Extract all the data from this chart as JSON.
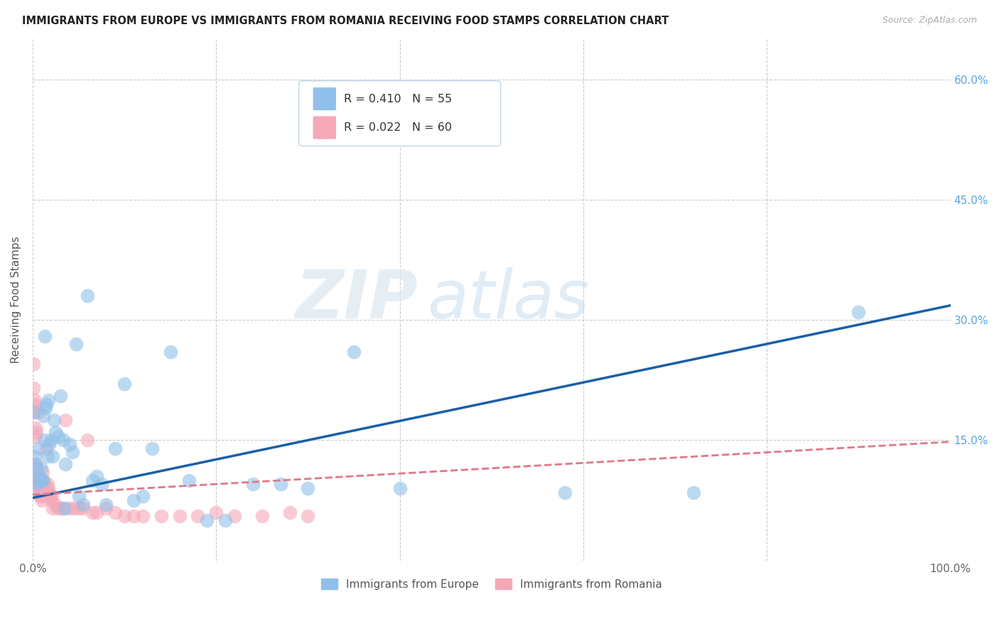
{
  "title": "IMMIGRANTS FROM EUROPE VS IMMIGRANTS FROM ROMANIA RECEIVING FOOD STAMPS CORRELATION CHART",
  "source": "Source: ZipAtlas.com",
  "ylabel": "Receiving Food Stamps",
  "xlabel": "",
  "xlim": [
    0,
    1.0
  ],
  "ylim": [
    0,
    0.65
  ],
  "yticks": [
    0.0,
    0.15,
    0.3,
    0.45,
    0.6
  ],
  "xticks": [
    0.0,
    0.2,
    0.4,
    0.6,
    0.8,
    1.0
  ],
  "xtick_labels": [
    "0.0%",
    "",
    "",
    "",
    "",
    "100.0%"
  ],
  "right_ytick_labels": [
    "15.0%",
    "30.0%",
    "45.0%",
    "60.0%"
  ],
  "europe_color": "#90c0ea",
  "romania_color": "#f5a8b8",
  "europe_line_color": "#1a5fa8",
  "romania_line_color": "#e07888",
  "background_color": "#ffffff",
  "watermark_zip": "ZIP",
  "watermark_atlas": "atlas",
  "europe_x": [
    0.001,
    0.002,
    0.003,
    0.004,
    0.005,
    0.006,
    0.007,
    0.008,
    0.009,
    0.01,
    0.011,
    0.012,
    0.013,
    0.014,
    0.015,
    0.016,
    0.018,
    0.02,
    0.022,
    0.025,
    0.028,
    0.03,
    0.033,
    0.036,
    0.04,
    0.043,
    0.047,
    0.05,
    0.055,
    0.06,
    0.065,
    0.07,
    0.075,
    0.08,
    0.09,
    0.1,
    0.11,
    0.12,
    0.13,
    0.15,
    0.17,
    0.19,
    0.21,
    0.24,
    0.27,
    0.3,
    0.35,
    0.4,
    0.58,
    0.72,
    0.9,
    0.013,
    0.017,
    0.023,
    0.035
  ],
  "europe_y": [
    0.185,
    0.13,
    0.12,
    0.115,
    0.095,
    0.14,
    0.105,
    0.1,
    0.115,
    0.1,
    0.1,
    0.18,
    0.15,
    0.19,
    0.195,
    0.13,
    0.145,
    0.15,
    0.13,
    0.16,
    0.155,
    0.205,
    0.15,
    0.12,
    0.145,
    0.135,
    0.27,
    0.08,
    0.07,
    0.33,
    0.1,
    0.105,
    0.095,
    0.07,
    0.14,
    0.22,
    0.075,
    0.08,
    0.14,
    0.26,
    0.1,
    0.05,
    0.05,
    0.095,
    0.095,
    0.09,
    0.26,
    0.09,
    0.085,
    0.085,
    0.31,
    0.28,
    0.2,
    0.175,
    0.065
  ],
  "romania_x": [
    0.0,
    0.001,
    0.001,
    0.002,
    0.002,
    0.003,
    0.003,
    0.003,
    0.004,
    0.004,
    0.005,
    0.005,
    0.006,
    0.006,
    0.007,
    0.007,
    0.008,
    0.009,
    0.01,
    0.011,
    0.012,
    0.013,
    0.014,
    0.015,
    0.016,
    0.017,
    0.018,
    0.019,
    0.02,
    0.021,
    0.022,
    0.025,
    0.027,
    0.03,
    0.033,
    0.036,
    0.04,
    0.045,
    0.05,
    0.055,
    0.065,
    0.07,
    0.08,
    0.09,
    0.1,
    0.11,
    0.12,
    0.14,
    0.16,
    0.18,
    0.2,
    0.22,
    0.25,
    0.28,
    0.3,
    0.003,
    0.004,
    0.006,
    0.008,
    0.06
  ],
  "romania_y": [
    0.1,
    0.245,
    0.215,
    0.2,
    0.185,
    0.195,
    0.165,
    0.12,
    0.115,
    0.1,
    0.11,
    0.095,
    0.1,
    0.09,
    0.095,
    0.085,
    0.08,
    0.08,
    0.075,
    0.11,
    0.1,
    0.095,
    0.09,
    0.14,
    0.095,
    0.09,
    0.085,
    0.08,
    0.075,
    0.08,
    0.065,
    0.07,
    0.065,
    0.065,
    0.065,
    0.175,
    0.065,
    0.065,
    0.065,
    0.065,
    0.06,
    0.06,
    0.065,
    0.06,
    0.055,
    0.055,
    0.055,
    0.055,
    0.055,
    0.055,
    0.06,
    0.055,
    0.055,
    0.06,
    0.055,
    0.155,
    0.16,
    0.185,
    0.09,
    0.15
  ],
  "eu_line_x0": 0.0,
  "eu_line_y0": 0.078,
  "eu_line_x1": 1.0,
  "eu_line_y1": 0.318,
  "ro_line_x0": 0.0,
  "ro_line_y0": 0.082,
  "ro_line_x1": 1.0,
  "ro_line_y1": 0.148
}
